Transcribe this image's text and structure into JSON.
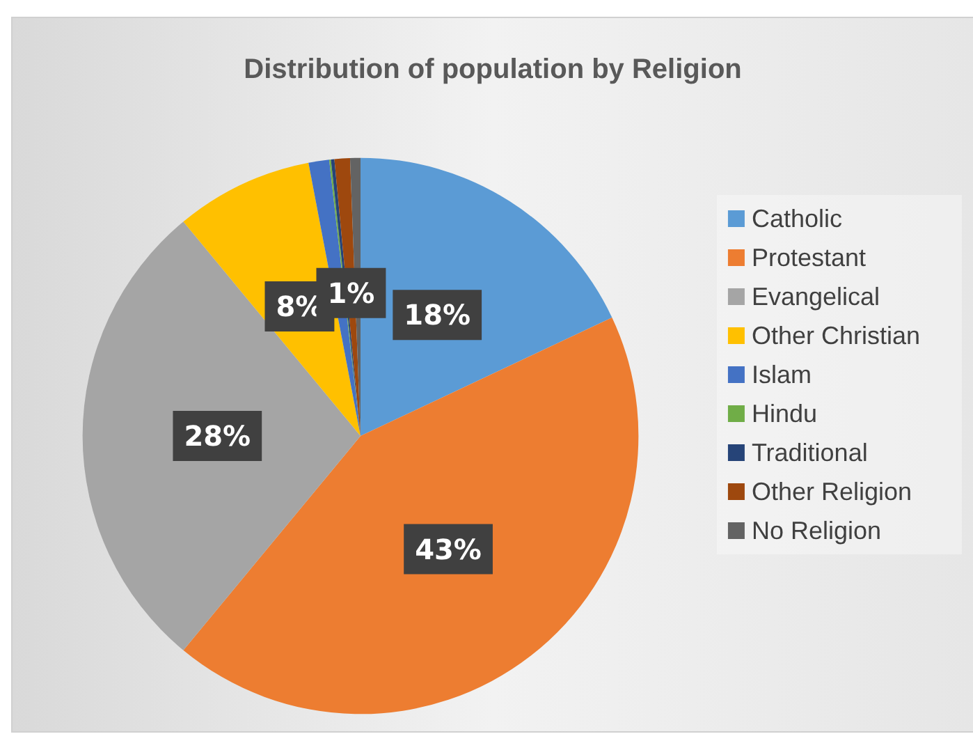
{
  "chart_data": {
    "type": "pie",
    "title": "Distribution of population by Religion",
    "categories": [
      "Catholic",
      "Protestant",
      "Evangelical",
      "Other Christian",
      "Islam",
      "Hindu",
      "Traditional",
      "Other Religion",
      "No Religion"
    ],
    "values": [
      18,
      43,
      28,
      8,
      1.2,
      0.1,
      0.2,
      0.9,
      0.6
    ],
    "colors": [
      "#5b9bd5",
      "#ed7d31",
      "#a5a5a5",
      "#ffc000",
      "#4472c4",
      "#70ad47",
      "#264478",
      "#9e480e",
      "#636363"
    ],
    "value_labels": [
      "18%",
      "43%",
      "28%",
      "8%",
      null,
      null,
      null,
      "1%",
      null
    ],
    "legend": "right"
  }
}
